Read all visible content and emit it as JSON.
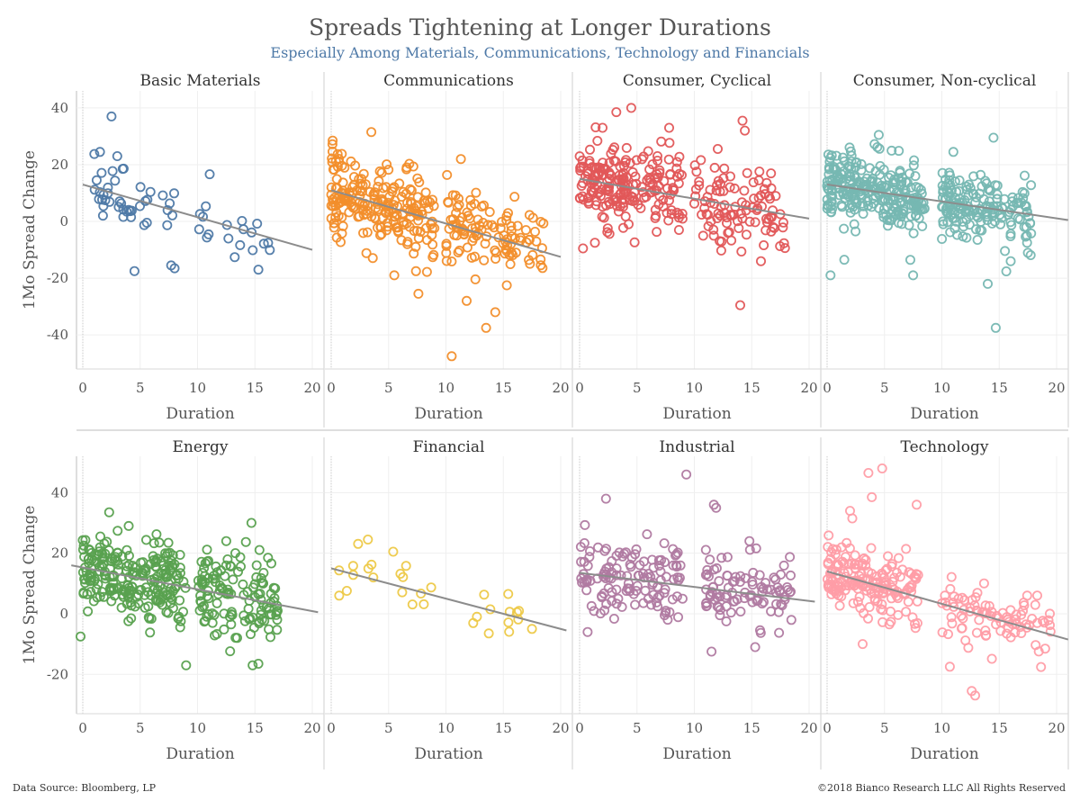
{
  "header": {
    "title": "Spreads Tightening at Longer Durations",
    "subtitle": "Especially Among Materials, Communications, Technology and Financials"
  },
  "footer": {
    "source": "Data Source: Bloomberg, LP",
    "copyright": "©2018 Bianco Research LLC   All Rights Reserved"
  },
  "chart_data": {
    "type": "scatter",
    "xlabel": "Duration",
    "ylabel": "1Mo Spread Change",
    "xlim": [
      0,
      20
    ],
    "xticks": [
      0,
      5,
      10,
      15,
      20
    ],
    "rows": [
      {
        "ylim": [
          -52,
          46
        ],
        "yticks": [
          -40,
          -20,
          0,
          20,
          40
        ]
      },
      {
        "ylim": [
          -33,
          52
        ],
        "yticks": [
          -20,
          0,
          20,
          40
        ]
      }
    ],
    "grid": true,
    "trendline_color": "#8c8c8c",
    "panels": [
      {
        "name": "Basic Materials",
        "row": 0,
        "col": 0,
        "color": "#4e79a7",
        "n": 60,
        "trend": [
          0,
          13,
          20,
          -10
        ],
        "clusters": [
          [
            1,
            8
          ],
          [
            10,
            17
          ]
        ],
        "sd": 6,
        "seed": 11,
        "outliers": [
          [
            2.5,
            37
          ],
          [
            4.5,
            -17.5
          ],
          [
            7.7,
            -15.5
          ],
          [
            8,
            -16.5
          ],
          [
            15.3,
            -17
          ],
          [
            1.5,
            24.5
          ],
          [
            3,
            23
          ]
        ]
      },
      {
        "name": "Communications",
        "row": 0,
        "col": 1,
        "color": "#f28e2b",
        "n": 330,
        "trend": [
          0,
          11,
          20,
          -12.5
        ],
        "clusters": [
          [
            0,
            9
          ],
          [
            10,
            18.5
          ]
        ],
        "sd": 7,
        "seed": 22,
        "outliers": [
          [
            3.5,
            31.5
          ],
          [
            10.5,
            -47.5
          ],
          [
            13.5,
            -37.5
          ],
          [
            14.3,
            -32
          ],
          [
            11.8,
            -28
          ],
          [
            7.6,
            -25.5
          ],
          [
            5.5,
            -19
          ],
          [
            11.3,
            22
          ],
          [
            15.3,
            -22.5
          ]
        ]
      },
      {
        "name": "Consumer, Cyclical",
        "row": 0,
        "col": 2,
        "color": "#e15759",
        "n": 300,
        "trend": [
          0,
          15,
          20,
          1
        ],
        "clusters": [
          [
            0,
            9
          ],
          [
            10,
            18
          ]
        ],
        "sd": 7,
        "seed": 33,
        "outliers": [
          [
            4.5,
            40
          ],
          [
            3.2,
            38.5
          ],
          [
            14.2,
            35.5
          ],
          [
            14.4,
            32
          ],
          [
            14,
            -29.5
          ],
          [
            7.8,
            33
          ],
          [
            2,
            33
          ],
          [
            0.3,
            -9.5
          ],
          [
            15.8,
            -14
          ]
        ]
      },
      {
        "name": "Consumer, Non-cyclical",
        "row": 0,
        "col": 3,
        "color": "#76b7b2",
        "n": 420,
        "trend": [
          0,
          13,
          21,
          0.5
        ],
        "clusters": [
          [
            0,
            8.5
          ],
          [
            10,
            18
          ]
        ],
        "sd": 6.5,
        "seed": 44,
        "outliers": [
          [
            14.7,
            -37.5
          ],
          [
            14,
            -22
          ],
          [
            4.5,
            30.5
          ],
          [
            14.5,
            29.5
          ],
          [
            7.5,
            -19
          ],
          [
            0.3,
            -19
          ],
          [
            1.5,
            -13.5
          ],
          [
            11,
            24.5
          ],
          [
            16,
            -14
          ]
        ]
      },
      {
        "name": "Energy",
        "row": 1,
        "col": 0,
        "color": "#59a14f",
        "n": 360,
        "trend": [
          -1,
          16,
          20.5,
          0.5
        ],
        "clusters": [
          [
            0,
            9
          ],
          [
            10,
            17
          ]
        ],
        "sd": 6.5,
        "seed": 55,
        "outliers": [
          [
            2.3,
            33.5
          ],
          [
            14.7,
            30
          ],
          [
            -0.2,
            -7.5
          ],
          [
            9,
            -17
          ],
          [
            14.8,
            -17
          ],
          [
            15.3,
            -16.5
          ],
          [
            4,
            29
          ],
          [
            12.5,
            24
          ]
        ]
      },
      {
        "name": "Financial",
        "row": 1,
        "col": 1,
        "color": "#edc948",
        "n": 26,
        "trend": [
          0,
          15,
          20.5,
          -5.5
        ],
        "clusters": [
          [
            0.5,
            9
          ],
          [
            12,
            17
          ]
        ],
        "sd": 4.5,
        "seed": 66,
        "outliers": [
          [
            3.2,
            24.5
          ],
          [
            5.4,
            20.5
          ],
          [
            12.7,
            -1
          ],
          [
            16.2,
            0.5
          ],
          [
            17.5,
            -5
          ],
          [
            0.7,
            6
          ]
        ]
      },
      {
        "name": "Industrial",
        "row": 1,
        "col": 2,
        "color": "#b07aa1",
        "n": 220,
        "trend": [
          0,
          13.5,
          20.5,
          4
        ],
        "clusters": [
          [
            0,
            9
          ],
          [
            11,
            18.5
          ]
        ],
        "sd": 6.5,
        "seed": 77,
        "outliers": [
          [
            9.3,
            46
          ],
          [
            11.7,
            36
          ],
          [
            11.9,
            35
          ],
          [
            2.3,
            38
          ],
          [
            14.8,
            24
          ],
          [
            0.7,
            -6
          ],
          [
            11.5,
            -12.5
          ],
          [
            15.3,
            -11
          ]
        ]
      },
      {
        "name": "Technology",
        "row": 1,
        "col": 3,
        "color": "#ff9da7",
        "n": 260,
        "trend": [
          0,
          14,
          21,
          -8.5
        ],
        "clusters": [
          [
            0,
            8
          ],
          [
            10,
            19.5
          ]
        ],
        "sd": 5.5,
        "seed": 88,
        "outliers": [
          [
            4.8,
            48
          ],
          [
            3.6,
            46.5
          ],
          [
            3.9,
            38.5
          ],
          [
            2,
            34
          ],
          [
            2.2,
            31.5
          ],
          [
            7.8,
            36
          ],
          [
            12.6,
            -25.5
          ],
          [
            12.9,
            -27
          ],
          [
            10.7,
            -17.5
          ],
          [
            19,
            -11.5
          ],
          [
            3.1,
            -10
          ]
        ]
      }
    ]
  }
}
